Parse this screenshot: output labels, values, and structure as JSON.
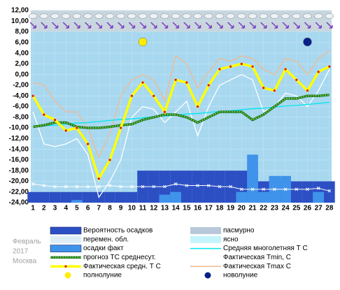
{
  "chart_data": {
    "type": "line",
    "annotations": [
      "Февраль",
      "2017",
      "Москва"
    ],
    "x": [
      1,
      2,
      3,
      4,
      5,
      6,
      7,
      8,
      9,
      10,
      11,
      12,
      13,
      14,
      15,
      16,
      17,
      18,
      19,
      20,
      21,
      22,
      23,
      24,
      25,
      26,
      27,
      28
    ],
    "xlim": [
      0.8,
      28.2
    ],
    "xticks": [
      1,
      2,
      3,
      4,
      5,
      6,
      7,
      8,
      9,
      10,
      11,
      12,
      13,
      14,
      15,
      16,
      17,
      18,
      19,
      20,
      21,
      22,
      23,
      24,
      25,
      26,
      27,
      28
    ],
    "ylim": [
      -24,
      12
    ],
    "yticks": [
      {
        "value": 12,
        "label": "12,00"
      },
      {
        "value": 10,
        "label": "10,00"
      },
      {
        "value": 8,
        "label": "8,00"
      },
      {
        "value": 6,
        "label": "6,00"
      },
      {
        "value": 4,
        "label": "4,00"
      },
      {
        "value": 2,
        "label": "2,00"
      },
      {
        "value": 0,
        "label": "0,00"
      },
      {
        "value": -2,
        "label": "-2,00"
      },
      {
        "value": -4,
        "label": "-4,00"
      },
      {
        "value": -6,
        "label": "-6,00"
      },
      {
        "value": -8,
        "label": "-8,00"
      },
      {
        "value": -10,
        "label": "-10,00"
      },
      {
        "value": -12,
        "label": "-12,00"
      },
      {
        "value": -14,
        "label": "-14,00"
      },
      {
        "value": -16,
        "label": "-16,00"
      },
      {
        "value": -18,
        "label": "-18,00"
      },
      {
        "value": -20,
        "label": "-20,00"
      },
      {
        "value": -22,
        "label": "-22,00"
      },
      {
        "value": -24,
        "label": "-24,00"
      }
    ],
    "grid": true,
    "series": [
      {
        "name": "Вероятность осадков",
        "style": "area",
        "color": "#2c4fc4",
        "values": [
          -22,
          -22,
          -22,
          -22,
          -22,
          -22,
          -22,
          -22,
          -22,
          -22,
          -18,
          -18,
          -18,
          -18,
          -18,
          -18,
          -18,
          -18,
          -18,
          -18,
          -18,
          -20,
          -20,
          -20,
          -20,
          -20,
          -20,
          -20
        ]
      },
      {
        "name": "осадки факт",
        "style": "area",
        "color": "#3f93ea",
        "values": [
          -24,
          -24,
          -24,
          -24,
          -23.5,
          -24,
          -24,
          -24,
          -24,
          -24,
          -24,
          -24,
          -22.5,
          -22,
          -24,
          -24,
          -24,
          -24,
          -24,
          -22,
          -15,
          -22,
          -19,
          -19,
          -24,
          -24,
          -22,
          -24
        ]
      },
      {
        "style": "cross",
        "color": "#ffffff",
        "values": [
          -20.5,
          -20.8,
          -21,
          -21,
          -21,
          -21,
          -21,
          -20.8,
          -21,
          -21,
          -21,
          -21,
          -21,
          -20.5,
          -20.8,
          -20.8,
          -20.8,
          -21,
          -21,
          -21.5,
          -21.5,
          -21.5,
          -21.5,
          -21.5,
          -21.5,
          -21.5,
          -21.3,
          -21.8
        ]
      },
      {
        "name": "Фактическая Tmax С",
        "style": "line",
        "color": "#f2b98e",
        "values": [
          -1.5,
          -2,
          -5,
          -7,
          -7,
          -10,
          -15.5,
          -11,
          -4,
          -1,
          0,
          -1,
          -5,
          3.5,
          2,
          -2.5,
          0.5,
          3,
          2.5,
          3.5,
          3,
          1,
          0,
          3,
          2.5,
          0,
          3,
          4.5
        ]
      },
      {
        "name": "Фактическая Tmin, С",
        "style": "line",
        "color": "#ffffff",
        "values": [
          -7,
          -13,
          -13.5,
          -13,
          -12,
          -15,
          -23,
          -20,
          -16,
          -8,
          -6,
          -6.5,
          -9,
          -7,
          -5,
          -11.5,
          -6,
          -2,
          -1,
          0,
          -1,
          -7,
          -6,
          -3.5,
          -4,
          -6,
          -3,
          1
        ]
      },
      {
        "name": "Средняя многолетняя Т С",
        "style": "line",
        "color": "#00e6f0",
        "values": [
          -9.8,
          -9.6,
          -9.5,
          -9.3,
          -9.1,
          -9,
          -8.8,
          -8.6,
          -8.4,
          -8.3,
          -8.1,
          -7.9,
          -7.8,
          -7.6,
          -7.4,
          -7.3,
          -7.1,
          -6.9,
          -6.8,
          -6.6,
          -6.4,
          -6.3,
          -6.1,
          -5.9,
          -5.8,
          -5.6,
          -5.4,
          -5.2
        ]
      },
      {
        "name": "прогноз ТС среднесут.",
        "style": "dotted",
        "color": "#1f7a1f",
        "values": [
          -9.8,
          -9.5,
          -9,
          -9,
          -9.8,
          -10,
          -10,
          -9.8,
          -9.5,
          -9.3,
          -8.5,
          -8,
          -7.5,
          -7.5,
          -8,
          -9,
          -8,
          -7,
          -7,
          -7,
          -8.5,
          -7.5,
          -6,
          -4.5,
          -4.5,
          -4,
          -4,
          -3.8
        ]
      },
      {
        "name": "Фактическая средн. Т С",
        "style": "thick-dots",
        "color": "#ffff00",
        "values": [
          -4,
          -7.5,
          -8.5,
          -10.5,
          -10,
          -13,
          -19.5,
          -16,
          -10,
          -4,
          -1.5,
          -4,
          -7,
          -1,
          -1.5,
          -6,
          -2,
          1,
          1.5,
          2,
          1.5,
          -2.5,
          -3,
          1,
          -1,
          -3,
          0.5,
          1.5
        ]
      }
    ],
    "legend_only": [
      {
        "name": "пасмурно",
        "color": "#b8c8d8"
      },
      {
        "name": "перемен. обл.",
        "color": "#dcedf5"
      },
      {
        "name": "ясно",
        "color": "#c4f4fc"
      }
    ],
    "markers": [
      {
        "name": "полнолуние",
        "x": 11,
        "color": "#ffee00"
      },
      {
        "name": "новолуние",
        "x": 26,
        "color": "#0a1f8a"
      }
    ]
  }
}
